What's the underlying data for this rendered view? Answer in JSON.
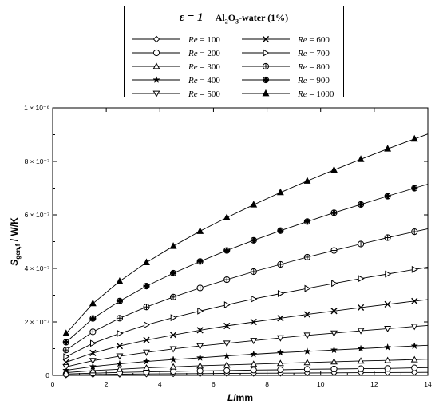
{
  "legend": {
    "epsilon": "ε = 1",
    "fluid_prefix": "Al",
    "fluid_sub1": "2",
    "fluid_mid": "O",
    "fluid_sub2": "3",
    "fluid_suffix": "-water (1%)"
  },
  "axes": {
    "xlabel_main": "L",
    "xlabel_unit": "/mm",
    "ylabel_main": "S",
    "ylabel_sub": "gen,f",
    "ylabel_unit": " / W/K",
    "y_exponent_labels": [
      "0",
      "2 × 10⁻⁷",
      "4 × 10⁻⁷",
      "6 × 10⁻⁷",
      "8 × 10⁻⁷",
      "1 × 10⁻⁶"
    ]
  },
  "chart_data": {
    "type": "line",
    "xlabel": "L/mm",
    "ylabel": "S_gen,f / W/K",
    "xlim": [
      0,
      14
    ],
    "ylim": [
      0,
      1e-06
    ],
    "x_ticks": [
      0,
      2,
      4,
      6,
      8,
      10,
      12,
      14
    ],
    "y_ticks": [
      0,
      2e-07,
      4e-07,
      6e-07,
      8e-07,
      1e-06
    ],
    "grid": false,
    "legend_position": "top-center",
    "x": [
      0.5,
      1.5,
      2.5,
      3.5,
      4.5,
      5.5,
      6.5,
      7.5,
      8.5,
      9.5,
      10.5,
      11.5,
      12.5,
      13.5
    ],
    "series": [
      {
        "name": "Re = 100",
        "marker": "diamond",
        "values": [
          2e-09,
          3.4e-09,
          4.4e-09,
          5.3e-09,
          6e-09,
          6.7e-09,
          7.4e-09,
          8e-09,
          8.5e-09,
          9.1e-09,
          9.6e-09,
          1.01e-08,
          1.06e-08,
          1.1e-08
        ]
      },
      {
        "name": "Re = 200",
        "marker": "circle",
        "values": [
          5e-09,
          8.5e-09,
          1.1e-08,
          1.3e-08,
          1.5e-08,
          1.7e-08,
          1.8e-08,
          2e-08,
          2.1e-08,
          2.3e-08,
          2.4e-08,
          2.5e-08,
          2.6e-08,
          2.8e-08
        ]
      },
      {
        "name": "Re = 300",
        "marker": "triangle-up-open",
        "values": [
          1e-08,
          1.8e-08,
          2.3e-08,
          2.8e-08,
          3.2e-08,
          3.6e-08,
          3.9e-08,
          4.2e-08,
          4.5e-08,
          4.8e-08,
          5.1e-08,
          5.4e-08,
          5.6e-08,
          5.9e-08
        ]
      },
      {
        "name": "Re = 400",
        "marker": "star",
        "values": [
          1.9e-08,
          3.3e-08,
          4.3e-08,
          5.2e-08,
          5.9e-08,
          6.6e-08,
          7.3e-08,
          7.9e-08,
          8.5e-08,
          9e-08,
          9.5e-08,
          1e-07,
          1.05e-07,
          1.1e-07
        ]
      },
      {
        "name": "Re = 500",
        "marker": "triangle-down-open",
        "values": [
          3.2e-08,
          5.5e-08,
          7.2e-08,
          8.6e-08,
          9.9e-08,
          1.1e-07,
          1.2e-07,
          1.3e-07,
          1.4e-07,
          1.5e-07,
          1.58e-07,
          1.67e-07,
          1.75e-07,
          1.83e-07
        ]
      },
      {
        "name": "Re = 600",
        "marker": "x",
        "values": [
          4.9e-08,
          8.4e-08,
          1.1e-07,
          1.32e-07,
          1.51e-07,
          1.69e-07,
          1.85e-07,
          2e-07,
          2.14e-07,
          2.28e-07,
          2.41e-07,
          2.54e-07,
          2.66e-07,
          2.78e-07
        ]
      },
      {
        "name": "Re = 700",
        "marker": "triangle-right-open",
        "values": [
          7e-08,
          1.2e-07,
          1.57e-07,
          1.89e-07,
          2.16e-07,
          2.41e-07,
          2.64e-07,
          2.86e-07,
          3.06e-07,
          3.25e-07,
          3.44e-07,
          3.62e-07,
          3.79e-07,
          3.96e-07
        ]
      },
      {
        "name": "Re = 800",
        "marker": "circle-plus",
        "values": [
          9.5e-08,
          1.63e-07,
          2.14e-07,
          2.56e-07,
          2.93e-07,
          3.27e-07,
          3.58e-07,
          3.88e-07,
          4.15e-07,
          4.42e-07,
          4.67e-07,
          4.91e-07,
          5.15e-07,
          5.37e-07
        ]
      },
      {
        "name": "Re = 900",
        "marker": "circle-cross-filled",
        "values": [
          1.24e-07,
          2.13e-07,
          2.78e-07,
          3.34e-07,
          3.82e-07,
          4.26e-07,
          4.67e-07,
          5.05e-07,
          5.41e-07,
          5.75e-07,
          6.08e-07,
          6.39e-07,
          6.7e-07,
          7e-07
        ]
      },
      {
        "name": "Re = 1000",
        "marker": "triangle-up-filled",
        "values": [
          1.57e-07,
          2.69e-07,
          3.52e-07,
          4.22e-07,
          4.83e-07,
          5.39e-07,
          5.9e-07,
          6.38e-07,
          6.84e-07,
          7.27e-07,
          7.68e-07,
          8.08e-07,
          8.47e-07,
          8.84e-07
        ]
      }
    ]
  }
}
